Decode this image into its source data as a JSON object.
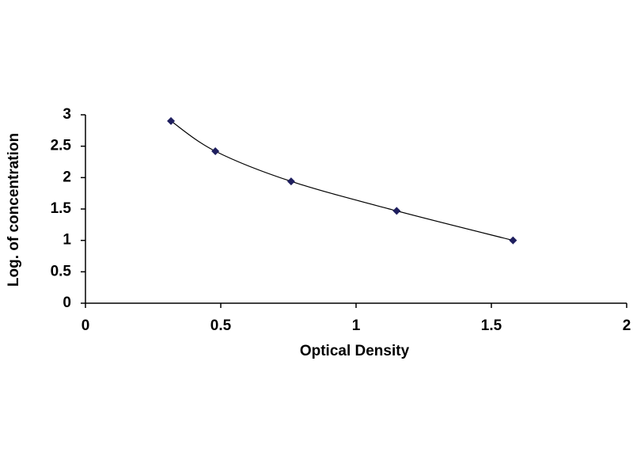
{
  "chart_data": {
    "type": "scatter",
    "x_label": "Optical Density",
    "y_label": "Log. of concentration",
    "x": [
      0.316,
      0.48,
      0.76,
      1.15,
      1.58
    ],
    "series": [
      {
        "color": "#1f1f5f",
        "values": [
          2.9,
          2.42,
          1.94,
          1.47,
          1.0
        ]
      }
    ],
    "line_color": "#000000",
    "xlim": [
      0,
      2
    ],
    "xticks": [
      0,
      0.5,
      1,
      1.5,
      2
    ],
    "ylim": [
      0,
      3
    ],
    "yticks": [
      0,
      0.5,
      1,
      1.5,
      2,
      2.5,
      3
    ],
    "grid": false
  }
}
